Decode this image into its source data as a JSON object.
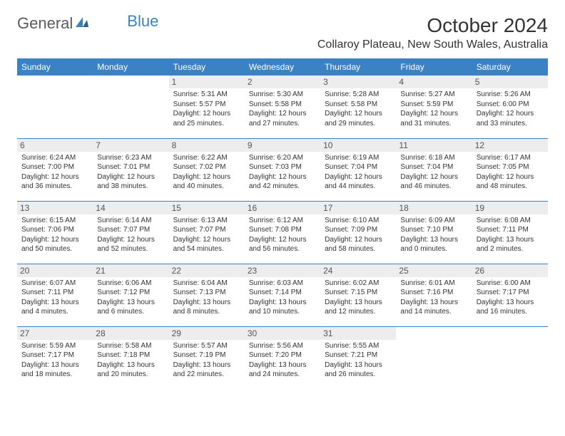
{
  "logo": {
    "part1": "General",
    "part2": "Blue"
  },
  "title": "October 2024",
  "location": "Collaroy Plateau, New South Wales, Australia",
  "colors": {
    "header_bg": "#3b82c4",
    "header_text": "#ffffff",
    "border": "#3b82c4",
    "daynum_bg": "#ededed",
    "text": "#333333",
    "logo_gray": "#5a5a5a",
    "logo_blue": "#3b82c4"
  },
  "day_names": [
    "Sunday",
    "Monday",
    "Tuesday",
    "Wednesday",
    "Thursday",
    "Friday",
    "Saturday"
  ],
  "weeks": [
    [
      {
        "n": "",
        "sr": "",
        "ss": "",
        "dl": ""
      },
      {
        "n": "",
        "sr": "",
        "ss": "",
        "dl": ""
      },
      {
        "n": "1",
        "sr": "Sunrise: 5:31 AM",
        "ss": "Sunset: 5:57 PM",
        "dl": "Daylight: 12 hours and 25 minutes."
      },
      {
        "n": "2",
        "sr": "Sunrise: 5:30 AM",
        "ss": "Sunset: 5:58 PM",
        "dl": "Daylight: 12 hours and 27 minutes."
      },
      {
        "n": "3",
        "sr": "Sunrise: 5:28 AM",
        "ss": "Sunset: 5:58 PM",
        "dl": "Daylight: 12 hours and 29 minutes."
      },
      {
        "n": "4",
        "sr": "Sunrise: 5:27 AM",
        "ss": "Sunset: 5:59 PM",
        "dl": "Daylight: 12 hours and 31 minutes."
      },
      {
        "n": "5",
        "sr": "Sunrise: 5:26 AM",
        "ss": "Sunset: 6:00 PM",
        "dl": "Daylight: 12 hours and 33 minutes."
      }
    ],
    [
      {
        "n": "6",
        "sr": "Sunrise: 6:24 AM",
        "ss": "Sunset: 7:00 PM",
        "dl": "Daylight: 12 hours and 36 minutes."
      },
      {
        "n": "7",
        "sr": "Sunrise: 6:23 AM",
        "ss": "Sunset: 7:01 PM",
        "dl": "Daylight: 12 hours and 38 minutes."
      },
      {
        "n": "8",
        "sr": "Sunrise: 6:22 AM",
        "ss": "Sunset: 7:02 PM",
        "dl": "Daylight: 12 hours and 40 minutes."
      },
      {
        "n": "9",
        "sr": "Sunrise: 6:20 AM",
        "ss": "Sunset: 7:03 PM",
        "dl": "Daylight: 12 hours and 42 minutes."
      },
      {
        "n": "10",
        "sr": "Sunrise: 6:19 AM",
        "ss": "Sunset: 7:04 PM",
        "dl": "Daylight: 12 hours and 44 minutes."
      },
      {
        "n": "11",
        "sr": "Sunrise: 6:18 AM",
        "ss": "Sunset: 7:04 PM",
        "dl": "Daylight: 12 hours and 46 minutes."
      },
      {
        "n": "12",
        "sr": "Sunrise: 6:17 AM",
        "ss": "Sunset: 7:05 PM",
        "dl": "Daylight: 12 hours and 48 minutes."
      }
    ],
    [
      {
        "n": "13",
        "sr": "Sunrise: 6:15 AM",
        "ss": "Sunset: 7:06 PM",
        "dl": "Daylight: 12 hours and 50 minutes."
      },
      {
        "n": "14",
        "sr": "Sunrise: 6:14 AM",
        "ss": "Sunset: 7:07 PM",
        "dl": "Daylight: 12 hours and 52 minutes."
      },
      {
        "n": "15",
        "sr": "Sunrise: 6:13 AM",
        "ss": "Sunset: 7:07 PM",
        "dl": "Daylight: 12 hours and 54 minutes."
      },
      {
        "n": "16",
        "sr": "Sunrise: 6:12 AM",
        "ss": "Sunset: 7:08 PM",
        "dl": "Daylight: 12 hours and 56 minutes."
      },
      {
        "n": "17",
        "sr": "Sunrise: 6:10 AM",
        "ss": "Sunset: 7:09 PM",
        "dl": "Daylight: 12 hours and 58 minutes."
      },
      {
        "n": "18",
        "sr": "Sunrise: 6:09 AM",
        "ss": "Sunset: 7:10 PM",
        "dl": "Daylight: 13 hours and 0 minutes."
      },
      {
        "n": "19",
        "sr": "Sunrise: 6:08 AM",
        "ss": "Sunset: 7:11 PM",
        "dl": "Daylight: 13 hours and 2 minutes."
      }
    ],
    [
      {
        "n": "20",
        "sr": "Sunrise: 6:07 AM",
        "ss": "Sunset: 7:11 PM",
        "dl": "Daylight: 13 hours and 4 minutes."
      },
      {
        "n": "21",
        "sr": "Sunrise: 6:06 AM",
        "ss": "Sunset: 7:12 PM",
        "dl": "Daylight: 13 hours and 6 minutes."
      },
      {
        "n": "22",
        "sr": "Sunrise: 6:04 AM",
        "ss": "Sunset: 7:13 PM",
        "dl": "Daylight: 13 hours and 8 minutes."
      },
      {
        "n": "23",
        "sr": "Sunrise: 6:03 AM",
        "ss": "Sunset: 7:14 PM",
        "dl": "Daylight: 13 hours and 10 minutes."
      },
      {
        "n": "24",
        "sr": "Sunrise: 6:02 AM",
        "ss": "Sunset: 7:15 PM",
        "dl": "Daylight: 13 hours and 12 minutes."
      },
      {
        "n": "25",
        "sr": "Sunrise: 6:01 AM",
        "ss": "Sunset: 7:16 PM",
        "dl": "Daylight: 13 hours and 14 minutes."
      },
      {
        "n": "26",
        "sr": "Sunrise: 6:00 AM",
        "ss": "Sunset: 7:17 PM",
        "dl": "Daylight: 13 hours and 16 minutes."
      }
    ],
    [
      {
        "n": "27",
        "sr": "Sunrise: 5:59 AM",
        "ss": "Sunset: 7:17 PM",
        "dl": "Daylight: 13 hours and 18 minutes."
      },
      {
        "n": "28",
        "sr": "Sunrise: 5:58 AM",
        "ss": "Sunset: 7:18 PM",
        "dl": "Daylight: 13 hours and 20 minutes."
      },
      {
        "n": "29",
        "sr": "Sunrise: 5:57 AM",
        "ss": "Sunset: 7:19 PM",
        "dl": "Daylight: 13 hours and 22 minutes."
      },
      {
        "n": "30",
        "sr": "Sunrise: 5:56 AM",
        "ss": "Sunset: 7:20 PM",
        "dl": "Daylight: 13 hours and 24 minutes."
      },
      {
        "n": "31",
        "sr": "Sunrise: 5:55 AM",
        "ss": "Sunset: 7:21 PM",
        "dl": "Daylight: 13 hours and 26 minutes."
      },
      {
        "n": "",
        "sr": "",
        "ss": "",
        "dl": ""
      },
      {
        "n": "",
        "sr": "",
        "ss": "",
        "dl": ""
      }
    ]
  ]
}
